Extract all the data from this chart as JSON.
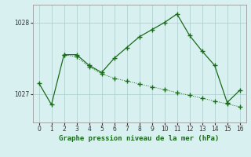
{
  "line1_x": [
    0,
    1,
    2,
    3,
    4,
    5,
    6,
    7,
    8,
    9,
    10,
    11,
    12,
    13,
    14,
    15,
    16
  ],
  "line1_y": [
    1027.15,
    1026.85,
    1027.55,
    1027.55,
    1027.4,
    1027.3,
    1027.5,
    1027.65,
    1027.8,
    1027.9,
    1028.0,
    1028.12,
    1027.82,
    1027.6,
    1027.4,
    1026.88,
    1027.05
  ],
  "line2_x": [
    2,
    3,
    4,
    5,
    6,
    7,
    8,
    9,
    10,
    11,
    12,
    13,
    14,
    15,
    16
  ],
  "line2_y": [
    1027.55,
    1027.52,
    1027.38,
    1027.28,
    1027.22,
    1027.18,
    1027.14,
    1027.1,
    1027.06,
    1027.02,
    1026.98,
    1026.94,
    1026.9,
    1026.86,
    1026.82
  ],
  "line_color": "#1a6b1a",
  "bg_color": "#d8f0f0",
  "grid_color": "#aacccc",
  "xlabel": "Graphe pression niveau de la mer (hPa)",
  "xlabel_color": "#1a6b1a",
  "xlim": [
    -0.5,
    16.5
  ],
  "ylim": [
    1026.6,
    1028.25
  ],
  "xticks": [
    0,
    1,
    2,
    3,
    4,
    5,
    6,
    7,
    8,
    9,
    10,
    11,
    12,
    13,
    14,
    15,
    16
  ],
  "yticks": [
    1027,
    1028
  ]
}
